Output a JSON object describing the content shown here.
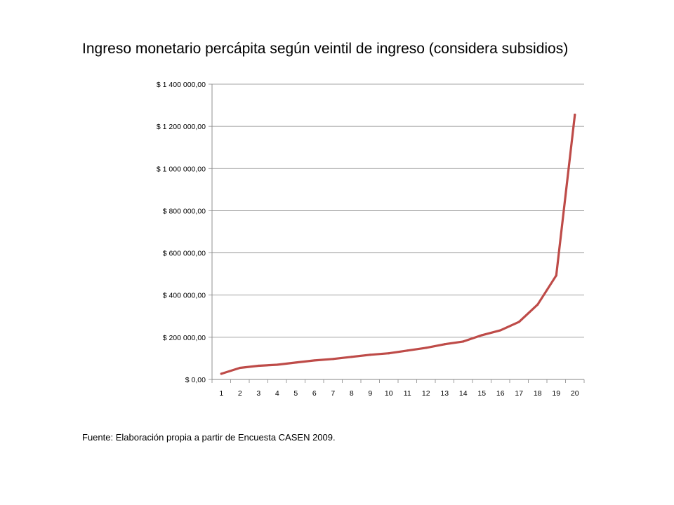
{
  "slide": {
    "title": "Ingreso monetario percápita según veintil de ingreso (considera subsidios)",
    "source": "Fuente: Elaboración propia a partir de Encuesta CASEN 2009."
  },
  "chart_data": {
    "type": "line",
    "title": "Ingreso monetario percápita según veintil de ingreso (considera subsidios)",
    "xlabel": "",
    "ylabel": "",
    "categories": [
      "1",
      "2",
      "3",
      "4",
      "5",
      "6",
      "7",
      "8",
      "9",
      "10",
      "11",
      "12",
      "13",
      "14",
      "15",
      "16",
      "17",
      "18",
      "19",
      "20"
    ],
    "values": [
      27000,
      55000,
      65000,
      70000,
      80000,
      90000,
      97000,
      107000,
      117000,
      124000,
      137000,
      150000,
      167000,
      180000,
      210000,
      233000,
      273000,
      355000,
      493000,
      1255000
    ],
    "ylim": [
      0,
      1400000
    ],
    "yticks": [
      0,
      200000,
      400000,
      600000,
      800000,
      1000000,
      1200000,
      1400000
    ],
    "ytick_labels": [
      "$ 0,00",
      "$ 200 000,00",
      "$ 400 000,00",
      "$ 600 000,00",
      "$ 800 000,00",
      "$ 1 000 000,00",
      "$ 1 200 000,00",
      "$ 1 400 000,00"
    ],
    "grid": true,
    "legend": "none",
    "line_color": "#be4b48"
  }
}
